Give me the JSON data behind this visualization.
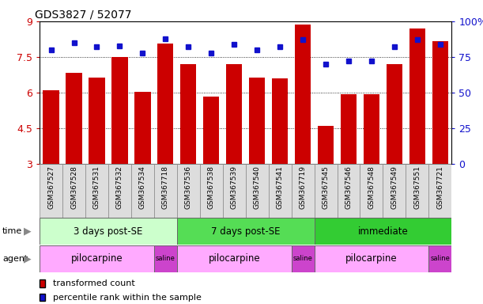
{
  "title": "GDS3827 / 52077",
  "samples": [
    "GSM367527",
    "GSM367528",
    "GSM367531",
    "GSM367532",
    "GSM367534",
    "GSM367718",
    "GSM367536",
    "GSM367538",
    "GSM367539",
    "GSM367540",
    "GSM367541",
    "GSM367719",
    "GSM367545",
    "GSM367546",
    "GSM367548",
    "GSM367549",
    "GSM367551",
    "GSM367721"
  ],
  "transformed_count": [
    6.1,
    6.85,
    6.65,
    7.5,
    6.05,
    8.05,
    7.2,
    5.85,
    7.2,
    6.65,
    6.6,
    8.85,
    4.6,
    5.95,
    5.95,
    7.2,
    8.7,
    8.15
  ],
  "percentile_rank": [
    80,
    85,
    82,
    83,
    78,
    88,
    82,
    78,
    84,
    80,
    82,
    87,
    70,
    72,
    72,
    82,
    87,
    84
  ],
  "ylim_left": [
    3,
    9
  ],
  "ylim_right": [
    0,
    100
  ],
  "yticks_left": [
    3,
    4.5,
    6,
    7.5,
    9
  ],
  "yticks_right": [
    0,
    25,
    50,
    75,
    100
  ],
  "ytick_labels_left": [
    "3",
    "4.5",
    "6",
    "7.5",
    "9"
  ],
  "ytick_labels_right": [
    "0",
    "25",
    "50",
    "75",
    "100%"
  ],
  "bar_color": "#cc0000",
  "dot_color": "#1111cc",
  "bar_bottom": 3,
  "gridlines": [
    4.5,
    6.0,
    7.5
  ],
  "time_groups": [
    {
      "label": "3 days post-SE",
      "start": 0,
      "end": 5,
      "color": "#ccffcc"
    },
    {
      "label": "7 days post-SE",
      "start": 6,
      "end": 11,
      "color": "#55dd55"
    },
    {
      "label": "immediate",
      "start": 12,
      "end": 17,
      "color": "#33cc33"
    }
  ],
  "agent_groups": [
    {
      "label": "pilocarpine",
      "start": 0,
      "end": 4,
      "color": "#ffaaff"
    },
    {
      "label": "saline",
      "start": 5,
      "end": 5,
      "color": "#cc44cc"
    },
    {
      "label": "pilocarpine",
      "start": 6,
      "end": 10,
      "color": "#ffaaff"
    },
    {
      "label": "saline",
      "start": 11,
      "end": 11,
      "color": "#cc44cc"
    },
    {
      "label": "pilocarpine",
      "start": 12,
      "end": 16,
      "color": "#ffaaff"
    },
    {
      "label": "saline",
      "start": 17,
      "end": 17,
      "color": "#cc44cc"
    }
  ],
  "legend_items": [
    {
      "label": "transformed count",
      "color": "#cc0000"
    },
    {
      "label": "percentile rank within the sample",
      "color": "#1111cc"
    }
  ],
  "time_label": "time",
  "agent_label": "agent",
  "bg_color": "#ffffff",
  "tick_label_color_left": "#cc0000",
  "tick_label_color_right": "#1111cc",
  "title_color": "#000000",
  "sample_box_color": "#dddddd",
  "sample_box_edge": "#888888"
}
